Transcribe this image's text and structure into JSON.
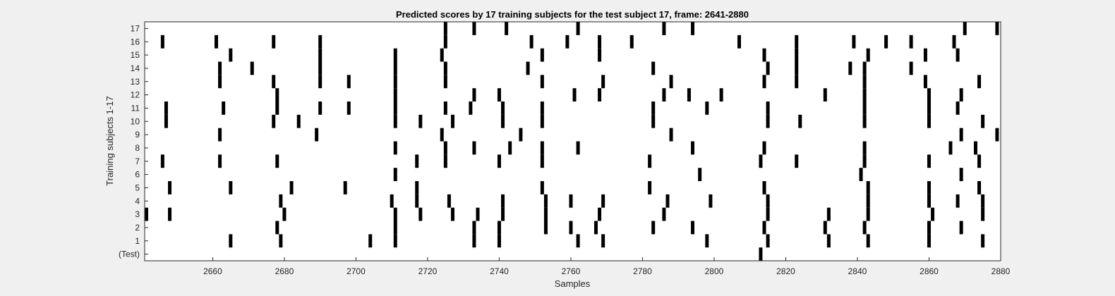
{
  "chart_data": {
    "type": "raster",
    "title": "Predicted scores by 17 training subjects for the test subject 17, frame: 2641-2880",
    "xlabel": "Samples",
    "ylabel": "Training subjects 1-17",
    "xlim": [
      2641,
      2880
    ],
    "xticks": [
      2660,
      2680,
      2700,
      2720,
      2740,
      2760,
      2780,
      2800,
      2820,
      2840,
      2860,
      2880
    ],
    "row_labels": [
      "(Test)",
      "1",
      "2",
      "3",
      "4",
      "5",
      "6",
      "7",
      "8",
      "9",
      "10",
      "11",
      "12",
      "13",
      "14",
      "15",
      "16",
      "17"
    ],
    "mark_color": "#000000",
    "background_color": "#ffffff",
    "rows": [
      {
        "label": "(Test)",
        "events": [
          2813
        ]
      },
      {
        "label": "1",
        "events": [
          2665,
          2679,
          2704,
          2711,
          2733,
          2740,
          2762,
          2769,
          2798,
          2815,
          2832,
          2843,
          2860,
          2875
        ]
      },
      {
        "label": "2",
        "events": [
          2678,
          2711,
          2733,
          2740,
          2753,
          2760,
          2767,
          2783,
          2794,
          2814,
          2831,
          2842,
          2860,
          2869
        ]
      },
      {
        "label": "3",
        "events": [
          2641,
          2648,
          2680,
          2711,
          2718,
          2727,
          2734,
          2741,
          2753,
          2768,
          2786,
          2815,
          2832,
          2843,
          2861,
          2875
        ]
      },
      {
        "label": "4",
        "events": [
          2679,
          2710,
          2717,
          2726,
          2741,
          2753,
          2760,
          2769,
          2787,
          2799,
          2815,
          2843,
          2860,
          2868,
          2875
        ]
      },
      {
        "label": "5",
        "events": [
          2648,
          2665,
          2682,
          2697,
          2717,
          2752,
          2782,
          2814,
          2843,
          2860,
          2874
        ]
      },
      {
        "label": "6",
        "events": [
          2711,
          2796,
          2841,
          2869
        ]
      },
      {
        "label": "7",
        "events": [
          2646,
          2662,
          2678,
          2717,
          2725,
          2740,
          2752,
          2782,
          2813,
          2823,
          2842,
          2860,
          2874
        ]
      },
      {
        "label": "8",
        "events": [
          2711,
          2725,
          2733,
          2743,
          2752,
          2762,
          2794,
          2814,
          2842,
          2866,
          2873
        ]
      },
      {
        "label": "9",
        "events": [
          2662,
          2689,
          2724,
          2746,
          2788,
          2869,
          2879
        ]
      },
      {
        "label": "10",
        "events": [
          2647,
          2677,
          2684,
          2711,
          2718,
          2727,
          2741,
          2752,
          2783,
          2815,
          2824,
          2842,
          2860,
          2875
        ]
      },
      {
        "label": "11",
        "events": [
          2647,
          2663,
          2678,
          2690,
          2698,
          2711,
          2725,
          2732,
          2741,
          2752,
          2783,
          2798,
          2815,
          2842,
          2860,
          2868
        ]
      },
      {
        "label": "12",
        "events": [
          2678,
          2711,
          2733,
          2740,
          2761,
          2768,
          2786,
          2793,
          2802,
          2831,
          2842,
          2860,
          2869
        ]
      },
      {
        "label": "13",
        "events": [
          2662,
          2677,
          2690,
          2698,
          2711,
          2725,
          2752,
          2769,
          2788,
          2814,
          2823,
          2842,
          2859,
          2874
        ]
      },
      {
        "label": "14",
        "events": [
          2662,
          2671,
          2690,
          2711,
          2725,
          2748,
          2783,
          2815,
          2823,
          2838,
          2842,
          2855
        ]
      },
      {
        "label": "15",
        "events": [
          2665,
          2690,
          2711,
          2724,
          2752,
          2768,
          2814,
          2823,
          2843,
          2859,
          2868
        ]
      },
      {
        "label": "16",
        "events": [
          2646,
          2661,
          2677,
          2690,
          2725,
          2749,
          2759,
          2768,
          2777,
          2807,
          2823,
          2839,
          2848,
          2855,
          2867
        ]
      },
      {
        "label": "17",
        "events": [
          2725,
          2733,
          2742,
          2762,
          2786,
          2794,
          2870,
          2879
        ]
      }
    ]
  }
}
